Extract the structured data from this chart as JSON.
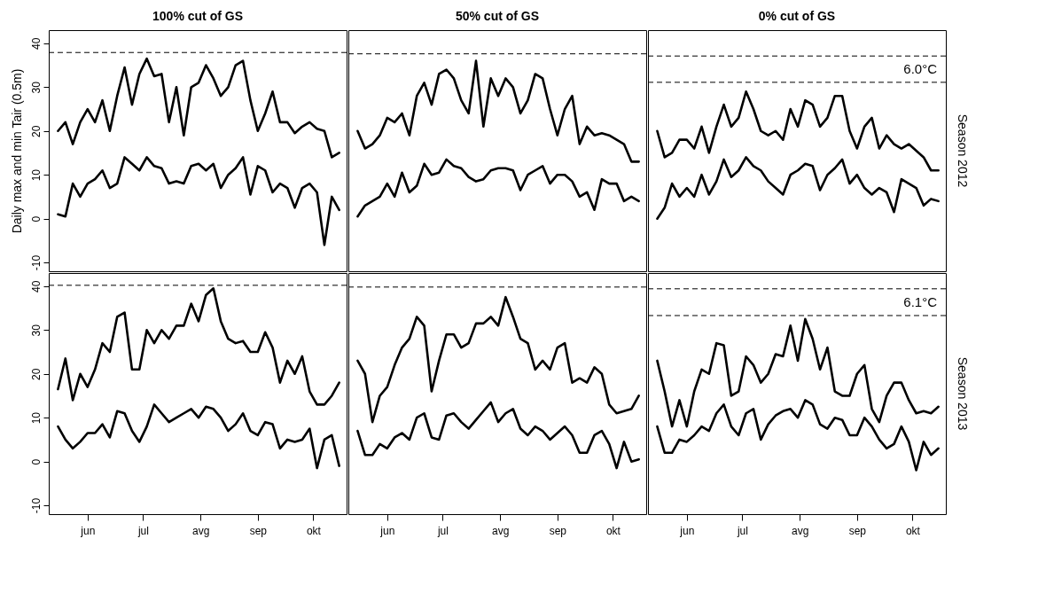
{
  "chart_data": [
    {
      "type": "line",
      "title": "100% cut of GS",
      "ylabel": "Daily max and min Tair (0.5m)",
      "tick_labels": "y",
      "x": [
        "--05-16",
        "--05-20",
        "--05-24",
        "--05-28",
        "--06-01",
        "--06-05",
        "--06-09",
        "--06-13",
        "--06-17",
        "--06-21",
        "--06-25",
        "--06-29",
        "--07-03",
        "--07-07",
        "--07-11",
        "--07-15",
        "--07-19",
        "--07-23",
        "--07-27",
        "--07-31",
        "--08-04",
        "--08-08",
        "--08-12",
        "--08-16",
        "--08-20",
        "--08-24",
        "--08-28",
        "--09-01",
        "--09-05",
        "--09-09",
        "--09-13",
        "--09-17",
        "--09-21",
        "--09-25",
        "--09-29",
        "--10-03",
        "--10-07",
        "--10-11",
        "--10-15"
      ],
      "xlim": [
        "--05-11",
        "--10-19"
      ],
      "xticks": [
        {
          "value": "--06-01",
          "label": "jun"
        },
        {
          "value": "--07-01",
          "label": "jul"
        },
        {
          "value": "--08-01",
          "label": "avg"
        },
        {
          "value": "--09-01",
          "label": "sep"
        },
        {
          "value": "--10-01",
          "label": "okt"
        }
      ],
      "ylim": [
        -12,
        43
      ],
      "yticks": [
        -10,
        0,
        10,
        20,
        30,
        40
      ],
      "series": [
        {
          "color": "#000000",
          "values": [
            20,
            22,
            17,
            22,
            25,
            22,
            27,
            20,
            28,
            34.5,
            26,
            33,
            36.5,
            32.5,
            33,
            22,
            30,
            19,
            30,
            31,
            35,
            32,
            28,
            30,
            35,
            36,
            27,
            20,
            24,
            29,
            22,
            22,
            19.5,
            21,
            22,
            20.5,
            20,
            14,
            15
          ]
        },
        {
          "color": "#000000",
          "values": [
            1,
            0.5,
            8,
            5,
            8,
            9,
            11,
            7,
            8,
            14,
            12.5,
            11,
            14,
            12,
            11.5,
            8,
            8.5,
            8,
            12,
            12.5,
            11,
            12.5,
            7,
            10,
            11.5,
            14,
            5.5,
            12,
            11,
            6,
            8,
            7,
            2.5,
            7,
            8,
            6,
            -6,
            5,
            2
          ]
        }
      ],
      "ref_lines": [
        {
          "axis": "y",
          "value": 37.9,
          "color": "#000000",
          "line_style": "dashed"
        }
      ]
    },
    {
      "type": "line",
      "title": "50% cut of GS",
      "tick_labels": false,
      "x": [
        "--05-16",
        "--05-20",
        "--05-24",
        "--05-28",
        "--06-01",
        "--06-05",
        "--06-09",
        "--06-13",
        "--06-17",
        "--06-21",
        "--06-25",
        "--06-29",
        "--07-03",
        "--07-07",
        "--07-11",
        "--07-15",
        "--07-19",
        "--07-23",
        "--07-27",
        "--07-31",
        "--08-04",
        "--08-08",
        "--08-12",
        "--08-16",
        "--08-20",
        "--08-24",
        "--08-28",
        "--09-01",
        "--09-05",
        "--09-09",
        "--09-13",
        "--09-17",
        "--09-21",
        "--09-25",
        "--09-29",
        "--10-03",
        "--10-07",
        "--10-11",
        "--10-15"
      ],
      "xlim": [
        "--05-11",
        "--10-19"
      ],
      "xticks": [
        {
          "value": "--06-01",
          "label": "jun"
        },
        {
          "value": "--07-01",
          "label": "jul"
        },
        {
          "value": "--08-01",
          "label": "avg"
        },
        {
          "value": "--09-01",
          "label": "sep"
        },
        {
          "value": "--10-01",
          "label": "okt"
        }
      ],
      "ylim": [
        -12,
        43
      ],
      "yticks": [
        -10,
        0,
        10,
        20,
        30,
        40
      ],
      "series": [
        {
          "color": "#000000",
          "values": [
            20,
            16,
            17,
            19,
            23,
            22,
            24,
            19,
            28,
            31,
            26,
            33,
            34,
            32,
            27,
            24,
            36,
            21,
            32,
            28,
            32,
            30,
            24,
            27,
            33,
            32,
            25,
            19,
            25,
            28,
            17,
            21,
            19,
            19.5,
            19,
            18,
            17,
            13,
            13
          ]
        },
        {
          "color": "#000000",
          "values": [
            0.5,
            3,
            4,
            5,
            8,
            5,
            10.5,
            6,
            7.5,
            12.5,
            10,
            10.5,
            13.5,
            12,
            11.5,
            9.5,
            8.5,
            9,
            11,
            11.5,
            11.5,
            11,
            6.5,
            10,
            11,
            12,
            8,
            10,
            10,
            8.5,
            5,
            6,
            2,
            9,
            8,
            8,
            4,
            5,
            4
          ]
        }
      ],
      "ref_lines": [
        {
          "axis": "y",
          "value": 37.6,
          "color": "#000000",
          "line_style": "dashed"
        }
      ]
    },
    {
      "type": "line",
      "title": "0% cut of GS",
      "y2label": "Season 2012",
      "tick_labels": false,
      "annotations": [
        "6.0°C"
      ],
      "x": [
        "--05-16",
        "--05-20",
        "--05-24",
        "--05-28",
        "--06-01",
        "--06-05",
        "--06-09",
        "--06-13",
        "--06-17",
        "--06-21",
        "--06-25",
        "--06-29",
        "--07-03",
        "--07-07",
        "--07-11",
        "--07-15",
        "--07-19",
        "--07-23",
        "--07-27",
        "--07-31",
        "--08-04",
        "--08-08",
        "--08-12",
        "--08-16",
        "--08-20",
        "--08-24",
        "--08-28",
        "--09-01",
        "--09-05",
        "--09-09",
        "--09-13",
        "--09-17",
        "--09-21",
        "--09-25",
        "--09-29",
        "--10-03",
        "--10-07",
        "--10-11",
        "--10-15"
      ],
      "xlim": [
        "--05-11",
        "--10-19"
      ],
      "xticks": [
        {
          "value": "--06-01",
          "label": "jun"
        },
        {
          "value": "--07-01",
          "label": "jul"
        },
        {
          "value": "--08-01",
          "label": "avg"
        },
        {
          "value": "--09-01",
          "label": "sep"
        },
        {
          "value": "--10-01",
          "label": "okt"
        }
      ],
      "ylim": [
        -12,
        43
      ],
      "yticks": [
        -10,
        0,
        10,
        20,
        30,
        40
      ],
      "series": [
        {
          "color": "#000000",
          "values": [
            20,
            14,
            15,
            18,
            18,
            16,
            21,
            15,
            21,
            26,
            21,
            23,
            29,
            25,
            20,
            19,
            20,
            18,
            25,
            21,
            27,
            26,
            21,
            23,
            28,
            28,
            20,
            16,
            21,
            23,
            16,
            19,
            17,
            16,
            17,
            15.5,
            14,
            11,
            11
          ]
        },
        {
          "color": "#000000",
          "values": [
            0,
            2.5,
            8,
            5,
            7,
            5,
            10,
            5.5,
            8.5,
            13.5,
            9.5,
            11,
            14,
            12,
            11,
            8.5,
            7,
            5.5,
            10,
            11,
            12.5,
            12,
            6.5,
            10,
            11.5,
            13.5,
            8,
            10,
            7,
            5.5,
            7,
            6,
            1.5,
            9,
            8,
            7,
            3,
            4.5,
            4
          ]
        }
      ],
      "ref_lines": [
        {
          "axis": "y",
          "value": 37.1,
          "color": "#000000",
          "line_style": "dashed"
        },
        {
          "axis": "y",
          "value": 31.1,
          "color": "#000000",
          "line_style": "dashed"
        }
      ]
    },
    {
      "type": "line",
      "x": [
        "--05-16",
        "--05-20",
        "--05-24",
        "--05-28",
        "--06-01",
        "--06-05",
        "--06-09",
        "--06-13",
        "--06-17",
        "--06-21",
        "--06-25",
        "--06-29",
        "--07-03",
        "--07-07",
        "--07-11",
        "--07-15",
        "--07-19",
        "--07-23",
        "--07-27",
        "--07-31",
        "--08-04",
        "--08-08",
        "--08-12",
        "--08-16",
        "--08-20",
        "--08-24",
        "--08-28",
        "--09-01",
        "--09-05",
        "--09-09",
        "--09-13",
        "--09-17",
        "--09-21",
        "--09-25",
        "--09-29",
        "--10-03",
        "--10-07",
        "--10-11",
        "--10-15"
      ],
      "xlim": [
        "--05-11",
        "--10-19"
      ],
      "xticks": [
        {
          "value": "--06-01",
          "label": "jun"
        },
        {
          "value": "--07-01",
          "label": "jul"
        },
        {
          "value": "--08-01",
          "label": "avg"
        },
        {
          "value": "--09-01",
          "label": "sep"
        },
        {
          "value": "--10-01",
          "label": "okt"
        }
      ],
      "ylim": [
        -12,
        43
      ],
      "yticks": [
        -10,
        0,
        10,
        20,
        30,
        40
      ],
      "series": [
        {
          "color": "#000000",
          "values": [
            16.5,
            23.5,
            14,
            20,
            17,
            21,
            27,
            25,
            33,
            34,
            21,
            21,
            30,
            27,
            30,
            28,
            31,
            31,
            36,
            32,
            38,
            39.5,
            32,
            28,
            27,
            27.5,
            25,
            25,
            29.5,
            26,
            18,
            23,
            20,
            24,
            16,
            13,
            13,
            15,
            18
          ]
        },
        {
          "color": "#000000",
          "values": [
            8,
            5,
            3,
            4.5,
            6.5,
            6.5,
            8.5,
            5.5,
            11.5,
            11,
            7,
            4.5,
            8,
            13,
            11,
            9,
            10,
            11,
            12,
            10,
            12.5,
            12,
            10,
            7,
            8.5,
            11,
            7,
            6,
            9,
            8.5,
            3,
            5,
            4.5,
            5,
            7.5,
            -1.5,
            5,
            6,
            -1
          ]
        }
      ],
      "ref_lines": [
        {
          "axis": "y",
          "value": 40.2,
          "color": "#000000",
          "line_style": "dashed"
        }
      ]
    },
    {
      "type": "line",
      "tick_labels": "x",
      "x": [
        "--05-16",
        "--05-20",
        "--05-24",
        "--05-28",
        "--06-01",
        "--06-05",
        "--06-09",
        "--06-13",
        "--06-17",
        "--06-21",
        "--06-25",
        "--06-29",
        "--07-03",
        "--07-07",
        "--07-11",
        "--07-15",
        "--07-19",
        "--07-23",
        "--07-27",
        "--07-31",
        "--08-04",
        "--08-08",
        "--08-12",
        "--08-16",
        "--08-20",
        "--08-24",
        "--08-28",
        "--09-01",
        "--09-05",
        "--09-09",
        "--09-13",
        "--09-17",
        "--09-21",
        "--09-25",
        "--09-29",
        "--10-03",
        "--10-07",
        "--10-11",
        "--10-15"
      ],
      "xlim": [
        "--05-11",
        "--10-19"
      ],
      "xticks": [
        {
          "value": "--06-01",
          "label": "jun"
        },
        {
          "value": "--07-01",
          "label": "jul"
        },
        {
          "value": "--08-01",
          "label": "avg"
        },
        {
          "value": "--09-01",
          "label": "sep"
        },
        {
          "value": "--10-01",
          "label": "okt"
        }
      ],
      "ylim": [
        -12,
        43
      ],
      "yticks": [
        -10,
        0,
        10,
        20,
        30,
        40
      ],
      "series": [
        {
          "color": "#000000",
          "values": [
            23,
            20,
            9,
            15,
            17,
            22,
            26,
            28,
            33,
            31,
            16,
            23,
            29,
            29,
            26,
            27,
            31.5,
            31.5,
            33,
            31,
            37.5,
            33,
            28,
            27,
            21,
            23,
            21,
            26,
            27,
            18,
            19,
            18,
            21.5,
            20,
            13,
            11,
            11.5,
            12,
            15
          ]
        },
        {
          "color": "#000000",
          "values": [
            7,
            1.5,
            1.5,
            4,
            3,
            5.5,
            6.5,
            5,
            10,
            11,
            5.5,
            5,
            10.5,
            11,
            9,
            7.5,
            9.5,
            11.5,
            13.5,
            9,
            11,
            12,
            7.5,
            6,
            8,
            7,
            5,
            6.5,
            8,
            6,
            2,
            2,
            6,
            7,
            4,
            -1.5,
            4.5,
            0,
            0.5
          ]
        }
      ],
      "ref_lines": [
        {
          "axis": "y",
          "value": 39.8,
          "color": "#000000",
          "line_style": "dashed"
        }
      ]
    },
    {
      "type": "line",
      "y2label": "Season 2013",
      "tick_labels": "x",
      "annotations": [
        "6.1°C"
      ],
      "x": [
        "--05-16",
        "--05-20",
        "--05-24",
        "--05-28",
        "--06-01",
        "--06-05",
        "--06-09",
        "--06-13",
        "--06-17",
        "--06-21",
        "--06-25",
        "--06-29",
        "--07-03",
        "--07-07",
        "--07-11",
        "--07-15",
        "--07-19",
        "--07-23",
        "--07-27",
        "--07-31",
        "--08-04",
        "--08-08",
        "--08-12",
        "--08-16",
        "--08-20",
        "--08-24",
        "--08-28",
        "--09-01",
        "--09-05",
        "--09-09",
        "--09-13",
        "--09-17",
        "--09-21",
        "--09-25",
        "--09-29",
        "--10-03",
        "--10-07",
        "--10-11",
        "--10-15"
      ],
      "xlim": [
        "--05-11",
        "--10-19"
      ],
      "xticks": [
        {
          "value": "--06-01",
          "label": "jun"
        },
        {
          "value": "--07-01",
          "label": "jul"
        },
        {
          "value": "--08-01",
          "label": "avg"
        },
        {
          "value": "--09-01",
          "label": "sep"
        },
        {
          "value": "--10-01",
          "label": "okt"
        }
      ],
      "ylim": [
        -12,
        43
      ],
      "yticks": [
        -10,
        0,
        10,
        20,
        30,
        40
      ],
      "series": [
        {
          "color": "#000000",
          "values": [
            23,
            16,
            8,
            14,
            8,
            16,
            21,
            20,
            27,
            26.5,
            15,
            16,
            24,
            22,
            18,
            20,
            24.5,
            24,
            31,
            23,
            32.5,
            28,
            21,
            26,
            16,
            15,
            15,
            20,
            22,
            12,
            9,
            15,
            18,
            18,
            14,
            11,
            11.5,
            11,
            12.5
          ]
        },
        {
          "color": "#000000",
          "values": [
            8,
            2,
            2,
            5,
            4.5,
            6,
            8,
            7,
            11,
            13,
            8,
            6,
            11,
            12,
            5,
            8.5,
            10.5,
            11.5,
            12,
            10,
            14,
            13,
            8.5,
            7.5,
            10,
            9.5,
            6,
            6,
            10,
            8,
            5,
            3,
            4,
            8,
            4.5,
            -2,
            4.5,
            1.5,
            3
          ]
        }
      ],
      "ref_lines": [
        {
          "axis": "y",
          "value": 39.4,
          "color": "#000000",
          "line_style": "dashed"
        },
        {
          "axis": "y",
          "value": 33.3,
          "color": "#000000",
          "line_style": "dashed"
        }
      ]
    }
  ]
}
